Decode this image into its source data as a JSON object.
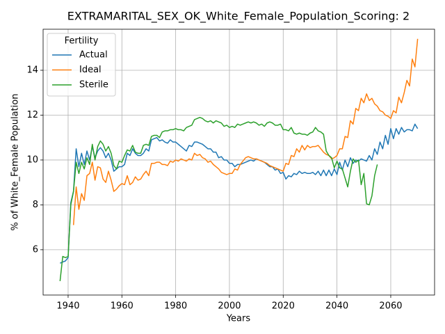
{
  "chart_data": {
    "type": "line",
    "title": "EXTRAMARITAL_SEX_OK_White_Female_Population_Scoring: 2",
    "xlabel": "Years",
    "ylabel": "% of White_Female Population",
    "legend_title": "Fertility",
    "legend": "upper left",
    "grid": true,
    "xlim": [
      1930.7,
      2076.3
    ],
    "ylim": [
      3.98,
      15.83
    ],
    "xticks": [
      1940,
      1960,
      1980,
      2000,
      2020,
      2040,
      2060
    ],
    "yticks": [
      6,
      8,
      10,
      12,
      14
    ],
    "x": [
      1937,
      1938,
      1939,
      1940,
      1941,
      1942,
      1943,
      1944,
      1945,
      1946,
      1947,
      1948,
      1949,
      1950,
      1951,
      1952,
      1953,
      1954,
      1955,
      1956,
      1957,
      1958,
      1959,
      1960,
      1961,
      1962,
      1963,
      1964,
      1965,
      1966,
      1967,
      1968,
      1969,
      1970,
      1971,
      1972,
      1973,
      1974,
      1975,
      1976,
      1977,
      1978,
      1979,
      1980,
      1981,
      1982,
      1983,
      1984,
      1985,
      1986,
      1987,
      1988,
      1989,
      1990,
      1991,
      1992,
      1993,
      1994,
      1995,
      1996,
      1997,
      1998,
      1999,
      2000,
      2001,
      2002,
      2003,
      2004,
      2005,
      2006,
      2007,
      2008,
      2009,
      2010,
      2011,
      2012,
      2013,
      2014,
      2015,
      2016,
      2017,
      2018,
      2019,
      2020,
      2021,
      2022,
      2023,
      2024,
      2025,
      2026,
      2027,
      2028,
      2029,
      2030,
      2031,
      2032,
      2033,
      2034,
      2035,
      2036,
      2037,
      2038,
      2039,
      2040,
      2041,
      2042,
      2043,
      2044,
      2045,
      2046,
      2047,
      2048,
      2049,
      2050,
      2051,
      2052,
      2053,
      2054,
      2055,
      2056,
      2057,
      2058,
      2059,
      2060,
      2061,
      2062,
      2063,
      2064,
      2065,
      2066,
      2067,
      2068,
      2069,
      2070
    ],
    "series": [
      {
        "name": "Actual",
        "color": "#1f77b4",
        "values": [
          5.4,
          5.45,
          5.5,
          5.65,
          8.1,
          8.6,
          10.5,
          9.7,
          10.3,
          9.8,
          10.4,
          10.0,
          10.6,
          10.1,
          10.4,
          10.55,
          10.4,
          10.1,
          10.3,
          10.0,
          9.5,
          9.6,
          9.7,
          9.7,
          9.8,
          10.3,
          10.2,
          10.5,
          10.3,
          10.2,
          10.2,
          10.3,
          10.5,
          10.4,
          10.9,
          10.95,
          11.0,
          10.85,
          10.9,
          10.8,
          10.75,
          10.9,
          10.8,
          10.8,
          10.7,
          10.6,
          10.5,
          10.4,
          10.65,
          10.6,
          10.8,
          10.8,
          10.75,
          10.7,
          10.6,
          10.5,
          10.5,
          10.35,
          10.35,
          10.1,
          10.15,
          10.0,
          10.0,
          9.85,
          9.85,
          9.7,
          9.8,
          9.8,
          9.85,
          9.9,
          9.95,
          10.0,
          9.95,
          10.05,
          10.0,
          9.95,
          9.9,
          9.8,
          9.7,
          9.7,
          9.55,
          9.6,
          9.4,
          9.45,
          9.15,
          9.3,
          9.25,
          9.4,
          9.35,
          9.5,
          9.4,
          9.45,
          9.4,
          9.4,
          9.45,
          9.35,
          9.5,
          9.3,
          9.55,
          9.3,
          9.55,
          9.3,
          9.6,
          9.35,
          9.9,
          9.55,
          10.0,
          9.7,
          10.1,
          9.85,
          10.0,
          9.95,
          10.05,
          10.0,
          9.95,
          10.2,
          10.0,
          10.5,
          10.25,
          10.8,
          10.5,
          11.1,
          10.7,
          11.4,
          10.95,
          11.4,
          11.15,
          11.45,
          11.25,
          11.35,
          11.35,
          11.3,
          11.6,
          11.4
        ]
      },
      {
        "name": "Ideal",
        "color": "#ff7f0e",
        "values": [
          null,
          null,
          null,
          null,
          null,
          7.1,
          8.8,
          7.8,
          8.5,
          8.2,
          9.3,
          9.4,
          9.9,
          9.1,
          9.7,
          9.65,
          9.15,
          9.0,
          9.5,
          9.1,
          8.6,
          8.7,
          8.85,
          8.95,
          8.9,
          9.3,
          8.9,
          9.0,
          9.25,
          9.1,
          9.15,
          9.35,
          9.5,
          9.3,
          9.85,
          9.85,
          9.9,
          9.9,
          9.8,
          9.8,
          9.75,
          9.95,
          9.9,
          10.0,
          9.95,
          10.05,
          10.0,
          9.95,
          10.05,
          10.0,
          10.3,
          10.2,
          10.25,
          10.1,
          10.05,
          9.9,
          9.95,
          9.8,
          9.7,
          9.6,
          9.45,
          9.4,
          9.35,
          9.4,
          9.4,
          9.6,
          9.55,
          9.8,
          9.95,
          10.1,
          10.15,
          10.1,
          10.05,
          10.05,
          10.0,
          9.95,
          9.9,
          9.85,
          9.75,
          9.7,
          9.65,
          9.6,
          9.55,
          9.5,
          9.85,
          9.8,
          10.2,
          10.15,
          10.5,
          10.35,
          10.65,
          10.45,
          10.65,
          10.55,
          10.6,
          10.6,
          10.65,
          10.5,
          10.35,
          10.25,
          10.2,
          10.05,
          10.1,
          10.2,
          10.5,
          10.5,
          11.05,
          11.0,
          11.75,
          11.6,
          12.3,
          12.2,
          12.75,
          12.55,
          12.95,
          12.65,
          12.75,
          12.5,
          12.4,
          12.2,
          12.15,
          12.0,
          11.95,
          11.85,
          12.2,
          12.1,
          12.8,
          12.55,
          13.0,
          13.55,
          13.3,
          14.5,
          14.15,
          15.4
        ]
      },
      {
        "name": "Sterile",
        "color": "#2ca02c",
        "values": [
          4.6,
          5.7,
          5.65,
          5.7,
          8.0,
          8.6,
          9.9,
          9.4,
          9.9,
          9.6,
          10.1,
          9.8,
          10.7,
          10.0,
          10.6,
          10.85,
          10.7,
          10.4,
          10.6,
          10.3,
          9.75,
          9.6,
          9.95,
          9.9,
          10.2,
          10.45,
          10.4,
          10.65,
          10.35,
          10.3,
          10.3,
          10.65,
          10.7,
          10.65,
          11.05,
          11.1,
          11.1,
          11.0,
          11.25,
          11.3,
          11.3,
          11.35,
          11.35,
          11.4,
          11.35,
          11.35,
          11.3,
          11.45,
          11.5,
          11.55,
          11.8,
          11.85,
          11.9,
          11.85,
          11.75,
          11.7,
          11.75,
          11.65,
          11.75,
          11.7,
          11.65,
          11.5,
          11.55,
          11.45,
          11.5,
          11.45,
          11.6,
          11.55,
          11.6,
          11.65,
          11.7,
          11.65,
          11.7,
          11.65,
          11.55,
          11.6,
          11.5,
          11.65,
          11.7,
          11.65,
          11.55,
          11.55,
          11.6,
          11.35,
          11.35,
          11.3,
          11.45,
          11.2,
          11.15,
          11.2,
          11.15,
          11.15,
          11.1,
          11.2,
          11.25,
          11.45,
          11.3,
          11.25,
          11.15,
          10.4,
          10.2,
          10.1,
          9.65,
          9.95,
          9.65,
          9.6,
          9.2,
          8.8,
          9.5,
          10.05,
          9.9,
          10.0,
          8.9,
          9.4,
          8.05,
          8.0,
          8.4,
          9.3,
          9.8,
          null,
          null,
          null,
          null,
          null,
          null,
          null,
          null,
          null,
          null,
          null,
          null,
          null,
          null,
          null
        ]
      }
    ]
  }
}
